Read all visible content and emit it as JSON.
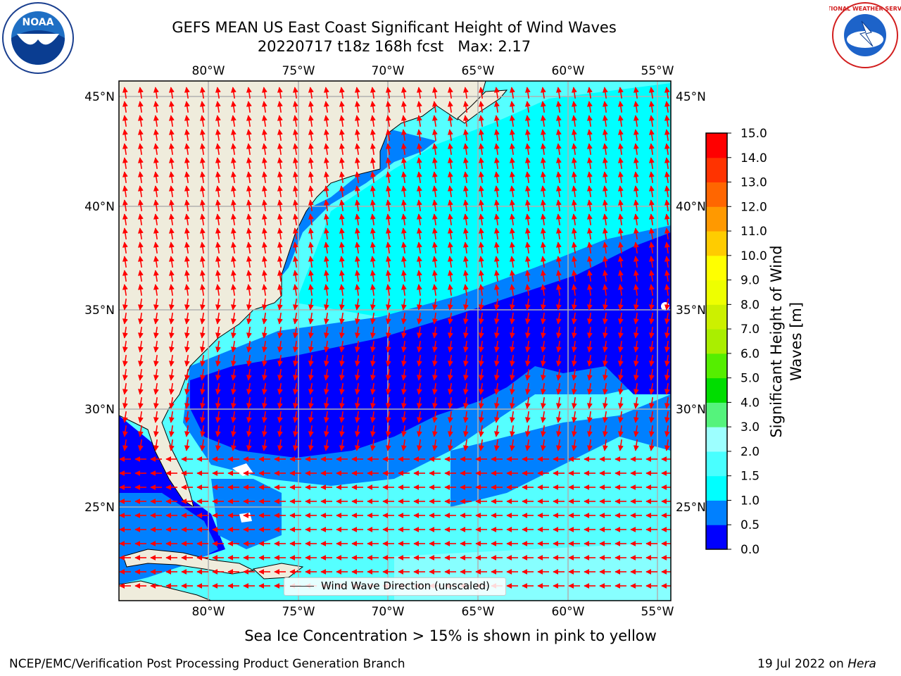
{
  "header": {
    "title_line1": "GEFS MEAN US East Coast Significant Height of Wind Waves",
    "title_line2": "20220717 t18z 168h fcst   Max: 2.17"
  },
  "map": {
    "lon_labels": [
      "80°W",
      "75°W",
      "70°W",
      "65°W",
      "60°W",
      "55°W"
    ],
    "lat_labels": [
      "45°N",
      "40°N",
      "35°N",
      "30°N",
      "25°N"
    ],
    "legend_text": "Wind Wave Direction (unscaled)",
    "land_color": "#efecdc",
    "arrow_color": "#ff0000"
  },
  "colorbar": {
    "label": "Significant Height of Wind Waves [m]",
    "ticks": [
      "0.0",
      "0.5",
      "1.0",
      "1.5",
      "2.0",
      "3.0",
      "4.0",
      "5.0",
      "6.0",
      "7.0",
      "8.0",
      "9.0",
      "10.0",
      "11.0",
      "12.0",
      "13.0",
      "14.0",
      "15.0"
    ],
    "colors": [
      "#0000ff",
      "#0080ff",
      "#00ffff",
      "#49ffff",
      "#9dffff",
      "#55f37c",
      "#00dd00",
      "#55ee00",
      "#aaee00",
      "#ccf000",
      "#eeff00",
      "#ffff00",
      "#ffcc00",
      "#ff9900",
      "#ff6600",
      "#ff3300",
      "#ff0000"
    ]
  },
  "notes": {
    "sea_ice": "Sea Ice Concentration > 15% is shown in pink to yellow"
  },
  "footer": {
    "left": "NCEP/EMC/Verification Post Processing Product Generation Branch",
    "right_date": "19 Jul 2022 on ",
    "right_machine": "Hera"
  },
  "logos": {
    "left_text": "NOAA",
    "right_text": "NATIONAL WEATHER SERVICE"
  }
}
